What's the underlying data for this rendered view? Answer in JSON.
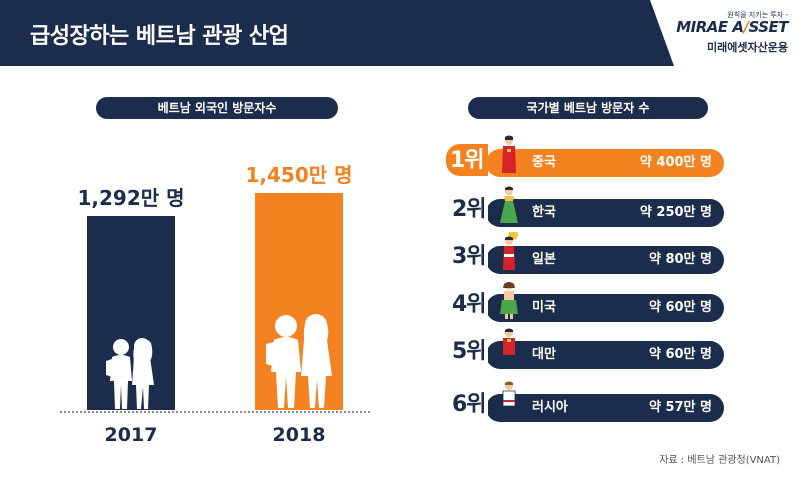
{
  "header": {
    "title": "급성장하는 베트남 관광 산업",
    "logo_tagline": "원칙을 지키는 투자 -",
    "logo_main_a": "MIRAE A",
    "logo_main_slash": "/",
    "logo_main_b": "SSET",
    "logo_sub": "미래에셋자산운용"
  },
  "left_panel": {
    "title": "베트남 외국인 방문자수"
  },
  "right_panel": {
    "title": "국가별 베트남 방문자 수"
  },
  "chart_data": [
    {
      "type": "bar",
      "title": "베트남 외국인 방문자수",
      "categories": [
        "2017",
        "2018"
      ],
      "values": [
        1292,
        1450
      ],
      "value_labels": [
        "1,292만 명",
        "1,450만 명"
      ],
      "unit": "만 명",
      "ylim": [
        0,
        1600
      ],
      "grid": false,
      "colors": [
        "#1c2c4c",
        "#f58220"
      ]
    },
    {
      "type": "table",
      "title": "국가별 베트남 방문자 수",
      "rows": [
        {
          "rank": "1위",
          "country": "중국",
          "value": 400,
          "label": "약 400만 명"
        },
        {
          "rank": "2위",
          "country": "한국",
          "value": 250,
          "label": "약 250만 명"
        },
        {
          "rank": "3위",
          "country": "일본",
          "value": 80,
          "label": "약 80만 명"
        },
        {
          "rank": "4위",
          "country": "미국",
          "value": 60,
          "label": "약 60만 명"
        },
        {
          "rank": "5위",
          "country": "대만",
          "value": 60,
          "label": "약 60만 명"
        },
        {
          "rank": "6위",
          "country": "러시아",
          "value": 57,
          "label": "약 57만 명"
        }
      ]
    }
  ],
  "source": "자료 : 베트남 관광청(VNAT)",
  "colors": {
    "navy": "#1c2c4c",
    "orange": "#f58220"
  },
  "icons": [
    "person-silhouette-icon",
    "traditional-costume-icon"
  ]
}
